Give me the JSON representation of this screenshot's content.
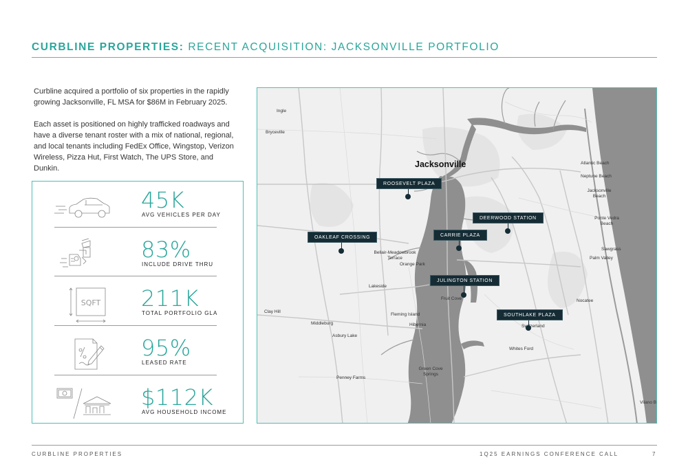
{
  "header": {
    "title_bold": "CURBLINE PROPERTIES:",
    "title_rest": "RECENT ACQUISITION: JACKSONVILLE PORTFOLIO"
  },
  "intro": {
    "paragraph1": "Curbline acquired a portfolio of six properties in the rapidly growing Jacksonville, FL MSA for $86M in February 2025.",
    "paragraph2": "Each asset is positioned on highly trafficked roadways and have a diverse tenant roster with a mix of national, regional, and local tenants including FedEx Office, Wingstop, Verizon Wireless, Pizza Hut, First Watch, The UPS Store, and Dunkin."
  },
  "stats": [
    {
      "value": "45K",
      "label": "AVG VEHICLES PER DAY",
      "icon": "car-icon"
    },
    {
      "value": "83%",
      "label": "INCLUDE DRIVE THRU",
      "icon": "drive-thru-icon"
    },
    {
      "value": "211K",
      "label": "TOTAL PORTFOLIO GLA",
      "icon": "square-footage-icon",
      "icon_text": "SQFT"
    },
    {
      "value": "95%",
      "label": "LEASED RATE",
      "icon": "lease-document-icon"
    },
    {
      "value": "$112K",
      "label": "AVG HOUSEHOLD INCOME",
      "icon": "income-house-icon"
    }
  ],
  "map": {
    "city": "Jacksonville",
    "places": [
      "Ingle",
      "Bryceville",
      "Atlantic Beach",
      "Neptune Beach",
      "Jacksonville Beach",
      "Ponte Vedra Beach",
      "Sawgrass",
      "Palm Valley",
      "Bellair-Meadowbrook Terrace",
      "Orange Park",
      "Lakeside",
      "Fruit Cove",
      "Clay Hill",
      "Middleburg",
      "Fleming Island",
      "Hibernia",
      "Asbury Lake",
      "Nocatee",
      "Switzerland",
      "Whites Ford",
      "Green Cove Springs",
      "Penney Farms",
      "Vilano B"
    ],
    "properties": [
      "ROOSEVELT PLAZA",
      "DEERWOOD STATION",
      "OAKLEAF CROSSING",
      "CARRIE PLAZA",
      "JULINGTON STATION",
      "SOUTHLAKE PLAZA"
    ]
  },
  "footer": {
    "company": "CURBLINE PROPERTIES",
    "event": "1Q25 EARNINGS CONFERENCE CALL",
    "page": "7"
  },
  "colors": {
    "accent": "#2aa69b",
    "marker": "#152c35",
    "water": "#8f8f8f"
  }
}
